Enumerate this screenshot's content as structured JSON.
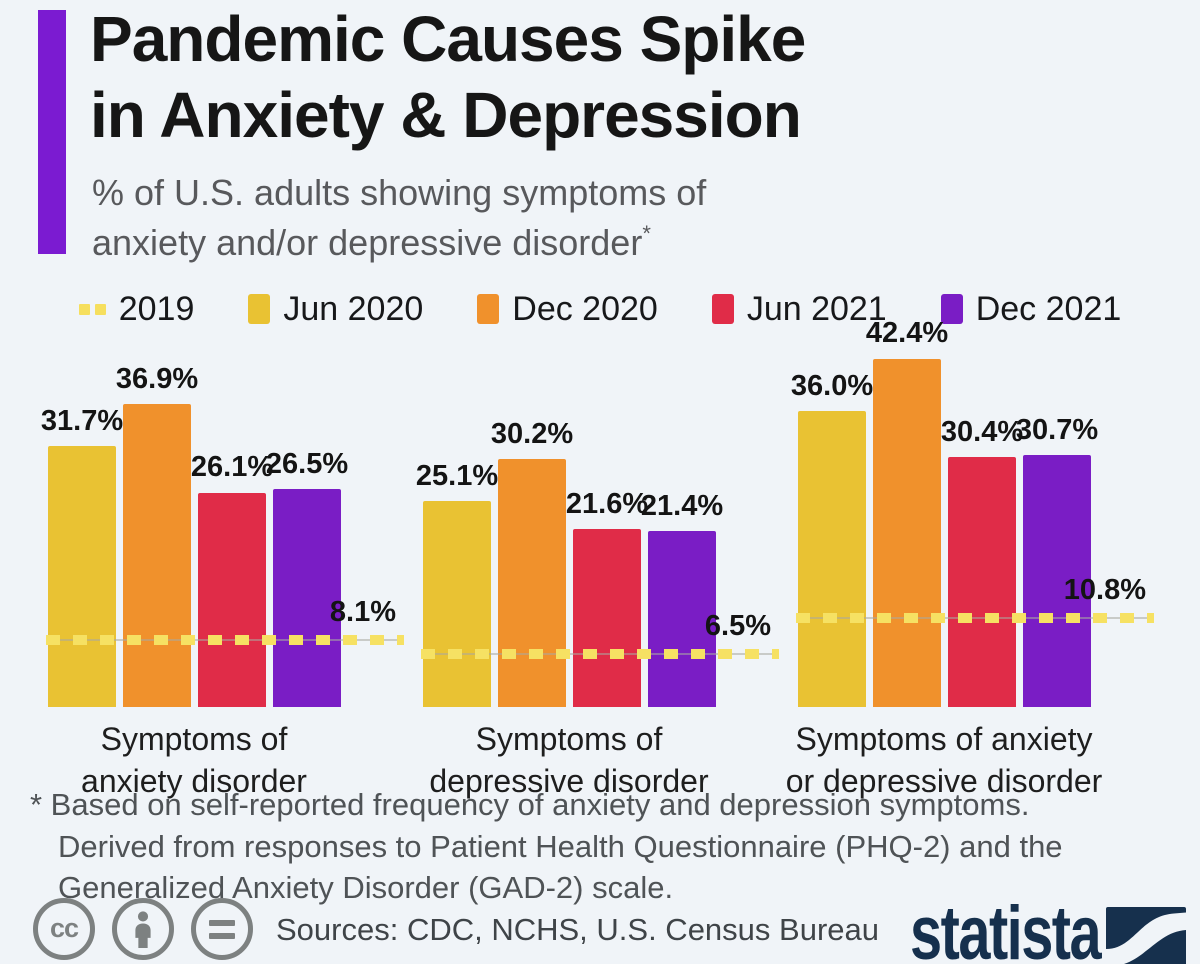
{
  "page": {
    "background": "#f0f4f8"
  },
  "header": {
    "accent_color": "#7b1bd1",
    "title_lines": [
      "Pandemic Causes Spike",
      "in Anxiety & Depression"
    ],
    "subtitle_lines": [
      "% of U.S. adults showing symptoms of",
      "anxiety and/or depressive disorder"
    ],
    "subtitle_footnote_marker": "*"
  },
  "legend": {
    "items": [
      {
        "label": "2019",
        "color": "#f6df5e",
        "swatch": "dashed"
      },
      {
        "label": "Jun 2020",
        "color": "#e9c233",
        "swatch": "solid"
      },
      {
        "label": "Dec 2020",
        "color": "#f0912c",
        "swatch": "solid"
      },
      {
        "label": "Jun 2021",
        "color": "#e02c48",
        "swatch": "solid"
      },
      {
        "label": "Dec 2021",
        "color": "#7a1dc5",
        "swatch": "solid"
      }
    ]
  },
  "chart_data": {
    "type": "bar",
    "unit": "%",
    "ylim": [
      0,
      45
    ],
    "grid": false,
    "legend_position": "top",
    "series": [
      "Jun 2020",
      "Dec 2020",
      "Jun 2021",
      "Dec 2021"
    ],
    "series_colors": [
      "#e9c233",
      "#f0912c",
      "#e02c48",
      "#7a1dc5"
    ],
    "reference_series": {
      "name": "2019",
      "style": "dashed",
      "color": "#f6e163"
    },
    "groups": [
      {
        "label_lines": [
          "Symptoms of",
          "anxiety disorder"
        ],
        "values": [
          31.7,
          36.9,
          26.1,
          26.5
        ],
        "ref_2019": 8.1
      },
      {
        "label_lines": [
          "Symptoms of",
          "depressive disorder"
        ],
        "values": [
          25.1,
          30.2,
          21.6,
          21.4
        ],
        "ref_2019": 6.5
      },
      {
        "label_lines": [
          "Symptoms of anxiety",
          "or depressive disorder"
        ],
        "values": [
          36.0,
          42.4,
          30.4,
          30.7
        ],
        "ref_2019": 10.8
      }
    ]
  },
  "footnote": {
    "lines": [
      "* Based on self-reported frequency of anxiety and depression symptoms.",
      "Derived from responses to Patient Health Questionnaire (PHQ-2) and the",
      "Generalized Anxiety Disorder (GAD-2) scale."
    ]
  },
  "footer": {
    "license_icons": [
      "cc-icon",
      "attribution-person-icon",
      "equals-icon"
    ],
    "cc_label": "cc",
    "sources_text": "Sources: CDC, NCHS, U.S. Census Bureau",
    "brand": {
      "wordmark": "statista",
      "color": "#16304d"
    }
  }
}
